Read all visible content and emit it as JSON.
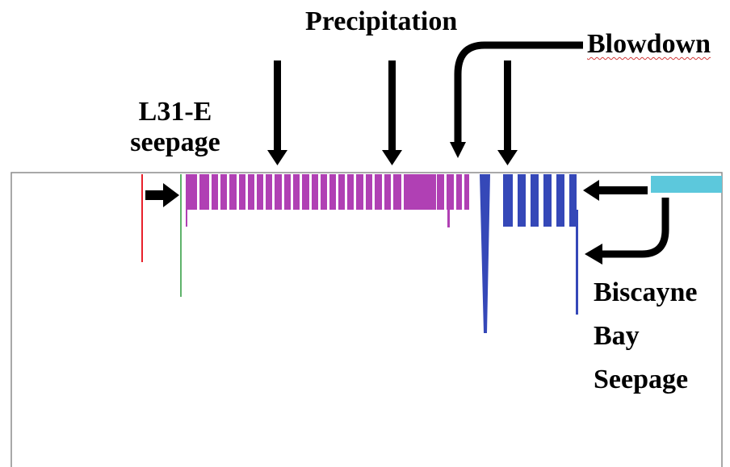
{
  "labels": {
    "precipitation": "Precipitation",
    "blowdown": "Blowdown",
    "l31e_line1": "L31-E",
    "l31e_line2": "seepage",
    "biscayne_line1": "Biscayne",
    "biscayne_line2": "Bay",
    "biscayne_line3": "Seepage"
  },
  "colors": {
    "l31e_seepage": "#e8212b",
    "l31e_inflow": "#2a9a3a",
    "precipitation": "#b040b4",
    "blowdown": "#3548b8",
    "biscayne_bay": "#5cc8dc",
    "outline": "#8c8c8c",
    "arrow": "#000000"
  }
}
